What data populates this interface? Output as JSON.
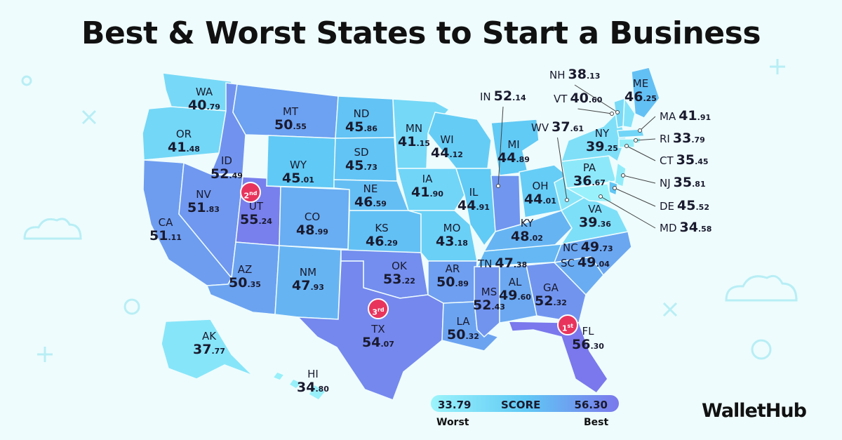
{
  "title": "Best & Worst States to Start a Business",
  "brand": "WalletHub",
  "legend": {
    "min": "33.79",
    "label": "SCORE",
    "max": "56.30",
    "worst": "Worst",
    "best": "Best"
  },
  "colors": {
    "low": "#9cf4fb",
    "mid": "#60c9f5",
    "high": "#7a78ec",
    "rank_badge": "#e8345c"
  },
  "ranks": [
    {
      "text": "1",
      "suffix": "st",
      "state": "FL"
    },
    {
      "text": "2",
      "suffix": "nd",
      "state": "UT"
    },
    {
      "text": "3",
      "suffix": "rd",
      "state": "TX"
    }
  ],
  "states": [
    {
      "ab": "WA",
      "int": "40",
      "dec": ".79",
      "score": 40.79
    },
    {
      "ab": "OR",
      "int": "41",
      "dec": ".48",
      "score": 41.48
    },
    {
      "ab": "CA",
      "int": "51",
      "dec": ".11",
      "score": 51.11
    },
    {
      "ab": "ID",
      "int": "52",
      "dec": ".49",
      "score": 52.49
    },
    {
      "ab": "NV",
      "int": "51",
      "dec": ".83",
      "score": 51.83
    },
    {
      "ab": "UT",
      "int": "55",
      "dec": ".24",
      "score": 55.24
    },
    {
      "ab": "AZ",
      "int": "50",
      "dec": ".35",
      "score": 50.35
    },
    {
      "ab": "MT",
      "int": "50",
      "dec": ".55",
      "score": 50.55
    },
    {
      "ab": "WY",
      "int": "45",
      "dec": ".01",
      "score": 45.01
    },
    {
      "ab": "CO",
      "int": "48",
      "dec": ".99",
      "score": 48.99
    },
    {
      "ab": "NM",
      "int": "47",
      "dec": ".93",
      "score": 47.93
    },
    {
      "ab": "ND",
      "int": "45",
      "dec": ".86",
      "score": 45.86
    },
    {
      "ab": "SD",
      "int": "45",
      "dec": ".73",
      "score": 45.73
    },
    {
      "ab": "NE",
      "int": "46",
      "dec": ".59",
      "score": 46.59
    },
    {
      "ab": "KS",
      "int": "46",
      "dec": ".29",
      "score": 46.29
    },
    {
      "ab": "OK",
      "int": "53",
      "dec": ".22",
      "score": 53.22
    },
    {
      "ab": "TX",
      "int": "54",
      "dec": ".07",
      "score": 54.07
    },
    {
      "ab": "MN",
      "int": "41",
      "dec": ".15",
      "score": 41.15
    },
    {
      "ab": "IA",
      "int": "41",
      "dec": ".90",
      "score": 41.9
    },
    {
      "ab": "MO",
      "int": "43",
      "dec": ".18",
      "score": 43.18
    },
    {
      "ab": "AR",
      "int": "50",
      "dec": ".89",
      "score": 50.89
    },
    {
      "ab": "LA",
      "int": "50",
      "dec": ".32",
      "score": 50.32
    },
    {
      "ab": "WI",
      "int": "44",
      "dec": ".12",
      "score": 44.12
    },
    {
      "ab": "IL",
      "int": "44",
      "dec": ".91",
      "score": 44.91
    },
    {
      "ab": "MI",
      "int": "44",
      "dec": ".89",
      "score": 44.89
    },
    {
      "ab": "IN",
      "int": "52",
      "dec": ".14",
      "score": 52.14
    },
    {
      "ab": "OH",
      "int": "44",
      "dec": ".01",
      "score": 44.01
    },
    {
      "ab": "KY",
      "int": "48",
      "dec": ".02",
      "score": 48.02
    },
    {
      "ab": "TN",
      "int": "47",
      "dec": ".38",
      "score": 47.38
    },
    {
      "ab": "MS",
      "int": "52",
      "dec": ".43",
      "score": 52.43
    },
    {
      "ab": "AL",
      "int": "49",
      "dec": ".60",
      "score": 49.6
    },
    {
      "ab": "GA",
      "int": "52",
      "dec": ".32",
      "score": 52.32
    },
    {
      "ab": "FL",
      "int": "56",
      "dec": ".30",
      "score": 56.3
    },
    {
      "ab": "SC",
      "int": "49",
      "dec": ".04",
      "score": 49.04
    },
    {
      "ab": "NC",
      "int": "49",
      "dec": ".73",
      "score": 49.73
    },
    {
      "ab": "VA",
      "int": "39",
      "dec": ".36",
      "score": 39.36
    },
    {
      "ab": "WV",
      "int": "37",
      "dec": ".61",
      "score": 37.61
    },
    {
      "ab": "PA",
      "int": "36",
      "dec": ".67",
      "score": 36.67
    },
    {
      "ab": "NY",
      "int": "39",
      "dec": ".25",
      "score": 39.25
    },
    {
      "ab": "ME",
      "int": "46",
      "dec": ".25",
      "score": 46.25
    },
    {
      "ab": "NH",
      "int": "38",
      "dec": ".13",
      "score": 38.13
    },
    {
      "ab": "VT",
      "int": "40",
      "dec": ".60",
      "score": 40.6
    },
    {
      "ab": "MA",
      "int": "41",
      "dec": ".91",
      "score": 41.91
    },
    {
      "ab": "RI",
      "int": "33",
      "dec": ".79",
      "score": 33.79
    },
    {
      "ab": "CT",
      "int": "35",
      "dec": ".45",
      "score": 35.45
    },
    {
      "ab": "NJ",
      "int": "35",
      "dec": ".81",
      "score": 35.81
    },
    {
      "ab": "DE",
      "int": "45",
      "dec": ".52",
      "score": 45.52
    },
    {
      "ab": "MD",
      "int": "34",
      "dec": ".58",
      "score": 34.58
    },
    {
      "ab": "AK",
      "int": "37",
      "dec": ".77",
      "score": 37.77
    },
    {
      "ab": "HI",
      "int": "34",
      "dec": ".80",
      "score": 34.8
    }
  ]
}
